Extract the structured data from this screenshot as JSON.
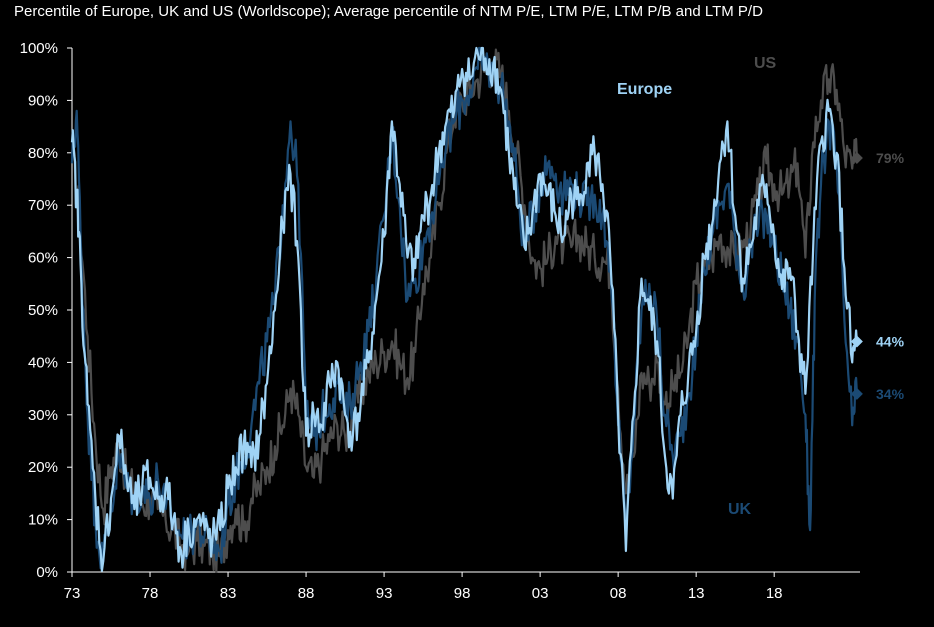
{
  "chart_data": {
    "type": "line",
    "title": "",
    "subtitle": "Percentile of Europe, UK and US (Worldscope); Average percentile of NTM P/E, LTM P/E, LTM P/B and LTM P/D",
    "xlabel": "",
    "ylabel": "",
    "x_range": [
      1973,
      2023.5
    ],
    "ylim": [
      0,
      100
    ],
    "y_ticks": [
      "0%",
      "10%",
      "20%",
      "30%",
      "40%",
      "50%",
      "60%",
      "70%",
      "80%",
      "90%",
      "100%"
    ],
    "x_ticks": [
      {
        "year": 1973,
        "label": "73"
      },
      {
        "year": 1978,
        "label": "78"
      },
      {
        "year": 1983,
        "label": "83"
      },
      {
        "year": 1988,
        "label": "88"
      },
      {
        "year": 1993,
        "label": "93"
      },
      {
        "year": 1998,
        "label": "98"
      },
      {
        "year": 2003,
        "label": "03"
      },
      {
        "year": 2008,
        "label": "08"
      },
      {
        "year": 2013,
        "label": "13"
      },
      {
        "year": 2018,
        "label": "18"
      }
    ],
    "grid": false,
    "series": [
      {
        "name": "US",
        "label": "US",
        "color": "#4d4d4d",
        "end_value": 79,
        "end_label": "79%",
        "points": [
          [
            1973,
            80
          ],
          [
            1973.5,
            68
          ],
          [
            1974,
            45
          ],
          [
            1974.5,
            25
          ],
          [
            1975,
            12
          ],
          [
            1975.5,
            20
          ],
          [
            1976,
            24
          ],
          [
            1976.5,
            18
          ],
          [
            1977,
            15
          ],
          [
            1977.5,
            13
          ],
          [
            1978,
            14
          ],
          [
            1978.5,
            12
          ],
          [
            1979,
            10
          ],
          [
            1979.5,
            8
          ],
          [
            1980,
            5
          ],
          [
            1980.5,
            4
          ],
          [
            1981,
            6
          ],
          [
            1981.5,
            5
          ],
          [
            1982,
            4
          ],
          [
            1982.5,
            3
          ],
          [
            1983,
            8
          ],
          [
            1983.5,
            12
          ],
          [
            1984,
            8
          ],
          [
            1984.5,
            14
          ],
          [
            1985,
            16
          ],
          [
            1985.5,
            20
          ],
          [
            1986,
            24
          ],
          [
            1986.5,
            28
          ],
          [
            1987,
            35
          ],
          [
            1987.5,
            30
          ],
          [
            1988,
            20
          ],
          [
            1988.5,
            18
          ],
          [
            1989,
            22
          ],
          [
            1989.5,
            25
          ],
          [
            1990,
            28
          ],
          [
            1990.5,
            26
          ],
          [
            1991,
            30
          ],
          [
            1991.5,
            34
          ],
          [
            1992,
            38
          ],
          [
            1992.5,
            40
          ],
          [
            1993,
            42
          ],
          [
            1993.5,
            44
          ],
          [
            1994,
            40
          ],
          [
            1994.5,
            37
          ],
          [
            1995,
            42
          ],
          [
            1995.5,
            55
          ],
          [
            1996,
            60
          ],
          [
            1996.5,
            70
          ],
          [
            1997,
            80
          ],
          [
            1997.5,
            88
          ],
          [
            1998,
            90
          ],
          [
            1998.5,
            92
          ],
          [
            1999,
            94
          ],
          [
            1999.5,
            96
          ],
          [
            2000,
            97
          ],
          [
            2000.5,
            95
          ],
          [
            2001,
            88
          ],
          [
            2001.5,
            80
          ],
          [
            2002,
            70
          ],
          [
            2002.5,
            60
          ],
          [
            2003,
            58
          ],
          [
            2003.5,
            60
          ],
          [
            2004,
            64
          ],
          [
            2004.5,
            62
          ],
          [
            2005,
            62
          ],
          [
            2005.5,
            64
          ],
          [
            2006,
            62
          ],
          [
            2006.5,
            60
          ],
          [
            2007,
            60
          ],
          [
            2007.5,
            58
          ],
          [
            2008,
            35
          ],
          [
            2008.5,
            15
          ],
          [
            2009,
            22
          ],
          [
            2009.5,
            38
          ],
          [
            2010,
            36
          ],
          [
            2010.5,
            40
          ],
          [
            2011,
            32
          ],
          [
            2011.5,
            35
          ],
          [
            2012,
            38
          ],
          [
            2012.5,
            45
          ],
          [
            2013,
            55
          ],
          [
            2013.5,
            58
          ],
          [
            2014,
            60
          ],
          [
            2014.5,
            64
          ],
          [
            2015,
            62
          ],
          [
            2015.5,
            60
          ],
          [
            2016,
            62
          ],
          [
            2016.5,
            66
          ],
          [
            2017,
            72
          ],
          [
            2017.5,
            78
          ],
          [
            2018,
            74
          ],
          [
            2018.5,
            72
          ],
          [
            2019,
            74
          ],
          [
            2019.5,
            78
          ],
          [
            2020,
            60
          ],
          [
            2020.5,
            82
          ],
          [
            2021,
            90
          ],
          [
            2021.5,
            94
          ],
          [
            2022,
            92
          ],
          [
            2022.5,
            80
          ],
          [
            2023,
            77
          ],
          [
            2023.3,
            79
          ]
        ]
      },
      {
        "name": "UK",
        "label": "UK",
        "color": "#1b4a74",
        "end_value": 34,
        "end_label": "34%",
        "points": [
          [
            1973,
            78
          ],
          [
            1973.3,
            88
          ],
          [
            1973.6,
            60
          ],
          [
            1974,
            30
          ],
          [
            1974.5,
            10
          ],
          [
            1975,
            2
          ],
          [
            1975.5,
            12
          ],
          [
            1976,
            22
          ],
          [
            1976.5,
            16
          ],
          [
            1977,
            14
          ],
          [
            1977.5,
            16
          ],
          [
            1978,
            14
          ],
          [
            1978.5,
            18
          ],
          [
            1979,
            12
          ],
          [
            1979.5,
            10
          ],
          [
            1980,
            7
          ],
          [
            1980.5,
            6
          ],
          [
            1981,
            9
          ],
          [
            1981.5,
            7
          ],
          [
            1982,
            5
          ],
          [
            1982.5,
            4
          ],
          [
            1983,
            13
          ],
          [
            1983.5,
            18
          ],
          [
            1984,
            22
          ],
          [
            1984.5,
            28
          ],
          [
            1985,
            36
          ],
          [
            1985.5,
            44
          ],
          [
            1986,
            52
          ],
          [
            1986.5,
            70
          ],
          [
            1987,
            86
          ],
          [
            1987.5,
            74
          ],
          [
            1988,
            30
          ],
          [
            1988.5,
            26
          ],
          [
            1989,
            30
          ],
          [
            1989.5,
            32
          ],
          [
            1990,
            36
          ],
          [
            1990.5,
            30
          ],
          [
            1991,
            34
          ],
          [
            1991.5,
            40
          ],
          [
            1992,
            46
          ],
          [
            1992.5,
            56
          ],
          [
            1993,
            68
          ],
          [
            1993.5,
            84
          ],
          [
            1994,
            70
          ],
          [
            1994.5,
            52
          ],
          [
            1995,
            56
          ],
          [
            1995.5,
            62
          ],
          [
            1996,
            68
          ],
          [
            1996.5,
            74
          ],
          [
            1997,
            82
          ],
          [
            1997.5,
            86
          ],
          [
            1998,
            90
          ],
          [
            1998.5,
            92
          ],
          [
            1999,
            96
          ],
          [
            1999.5,
            97
          ],
          [
            2000,
            95
          ],
          [
            2000.5,
            93
          ],
          [
            2001,
            86
          ],
          [
            2001.5,
            75
          ],
          [
            2002,
            62
          ],
          [
            2002.5,
            68
          ],
          [
            2003,
            74
          ],
          [
            2003.5,
            78
          ],
          [
            2004,
            76
          ],
          [
            2004.5,
            72
          ],
          [
            2005,
            74
          ],
          [
            2005.5,
            72
          ],
          [
            2006,
            70
          ],
          [
            2006.5,
            72
          ],
          [
            2007,
            68
          ],
          [
            2007.5,
            60
          ],
          [
            2008,
            28
          ],
          [
            2008.5,
            8
          ],
          [
            2009,
            28
          ],
          [
            2009.5,
            50
          ],
          [
            2010,
            55
          ],
          [
            2010.5,
            48
          ],
          [
            2011,
            30
          ],
          [
            2011.5,
            22
          ],
          [
            2012,
            26
          ],
          [
            2012.5,
            34
          ],
          [
            2013,
            44
          ],
          [
            2013.5,
            58
          ],
          [
            2014,
            64
          ],
          [
            2014.5,
            70
          ],
          [
            2015,
            74
          ],
          [
            2015.5,
            64
          ],
          [
            2016,
            54
          ],
          [
            2016.5,
            62
          ],
          [
            2017,
            66
          ],
          [
            2017.5,
            68
          ],
          [
            2018,
            62
          ],
          [
            2018.5,
            56
          ],
          [
            2019,
            50
          ],
          [
            2019.5,
            44
          ],
          [
            2020,
            30
          ],
          [
            2020.3,
            8
          ],
          [
            2020.6,
            52
          ],
          [
            2021,
            74
          ],
          [
            2021.5,
            86
          ],
          [
            2022,
            78
          ],
          [
            2022.5,
            48
          ],
          [
            2023,
            28
          ],
          [
            2023.3,
            34
          ]
        ]
      },
      {
        "name": "Europe",
        "label": "Europe",
        "color": "#9fd3f5",
        "end_value": 44,
        "end_label": "44%",
        "points": [
          [
            1973,
            82
          ],
          [
            1973.3,
            72
          ],
          [
            1973.6,
            55
          ],
          [
            1974,
            32
          ],
          [
            1974.5,
            14
          ],
          [
            1975,
            2
          ],
          [
            1975.5,
            14
          ],
          [
            1976,
            26
          ],
          [
            1976.5,
            18
          ],
          [
            1977,
            12
          ],
          [
            1977.5,
            16
          ],
          [
            1978,
            18
          ],
          [
            1978.5,
            14
          ],
          [
            1979,
            16
          ],
          [
            1979.5,
            10
          ],
          [
            1980,
            4
          ],
          [
            1980.5,
            8
          ],
          [
            1981,
            10
          ],
          [
            1981.5,
            8
          ],
          [
            1982,
            6
          ],
          [
            1982.5,
            8
          ],
          [
            1983,
            16
          ],
          [
            1983.5,
            20
          ],
          [
            1984,
            24
          ],
          [
            1984.5,
            20
          ],
          [
            1985,
            26
          ],
          [
            1985.5,
            36
          ],
          [
            1986,
            50
          ],
          [
            1986.5,
            66
          ],
          [
            1987,
            76
          ],
          [
            1987.5,
            60
          ],
          [
            1988,
            26
          ],
          [
            1988.5,
            30
          ],
          [
            1989,
            28
          ],
          [
            1989.5,
            36
          ],
          [
            1990,
            40
          ],
          [
            1990.5,
            30
          ],
          [
            1991,
            26
          ],
          [
            1991.5,
            32
          ],
          [
            1992,
            40
          ],
          [
            1992.5,
            52
          ],
          [
            1993,
            64
          ],
          [
            1993.5,
            86
          ],
          [
            1994,
            74
          ],
          [
            1994.5,
            60
          ],
          [
            1995,
            58
          ],
          [
            1995.5,
            68
          ],
          [
            1996,
            72
          ],
          [
            1996.5,
            80
          ],
          [
            1997,
            86
          ],
          [
            1997.5,
            88
          ],
          [
            1998,
            96
          ],
          [
            1998.5,
            94
          ],
          [
            1999,
            99
          ],
          [
            1999.5,
            98
          ],
          [
            2000,
            97
          ],
          [
            2000.5,
            92
          ],
          [
            2001,
            80
          ],
          [
            2001.5,
            70
          ],
          [
            2002,
            62
          ],
          [
            2002.5,
            68
          ],
          [
            2003,
            76
          ],
          [
            2003.5,
            72
          ],
          [
            2004,
            68
          ],
          [
            2004.5,
            64
          ],
          [
            2005,
            72
          ],
          [
            2005.5,
            70
          ],
          [
            2006,
            78
          ],
          [
            2006.5,
            80
          ],
          [
            2007,
            74
          ],
          [
            2007.5,
            60
          ],
          [
            2008,
            30
          ],
          [
            2008.5,
            4
          ],
          [
            2009,
            30
          ],
          [
            2009.5,
            56
          ],
          [
            2010,
            50
          ],
          [
            2010.5,
            44
          ],
          [
            2011,
            22
          ],
          [
            2011.5,
            14
          ],
          [
            2012,
            30
          ],
          [
            2012.5,
            38
          ],
          [
            2013,
            46
          ],
          [
            2013.5,
            60
          ],
          [
            2014,
            66
          ],
          [
            2014.5,
            78
          ],
          [
            2015,
            86
          ],
          [
            2015.5,
            68
          ],
          [
            2016,
            56
          ],
          [
            2016.5,
            62
          ],
          [
            2017,
            70
          ],
          [
            2017.5,
            74
          ],
          [
            2018,
            64
          ],
          [
            2018.5,
            54
          ],
          [
            2019,
            58
          ],
          [
            2019.5,
            46
          ],
          [
            2020,
            34
          ],
          [
            2020.5,
            62
          ],
          [
            2021,
            82
          ],
          [
            2021.5,
            88
          ],
          [
            2022,
            80
          ],
          [
            2022.5,
            58
          ],
          [
            2023,
            40
          ],
          [
            2023.3,
            44
          ]
        ]
      }
    ]
  }
}
